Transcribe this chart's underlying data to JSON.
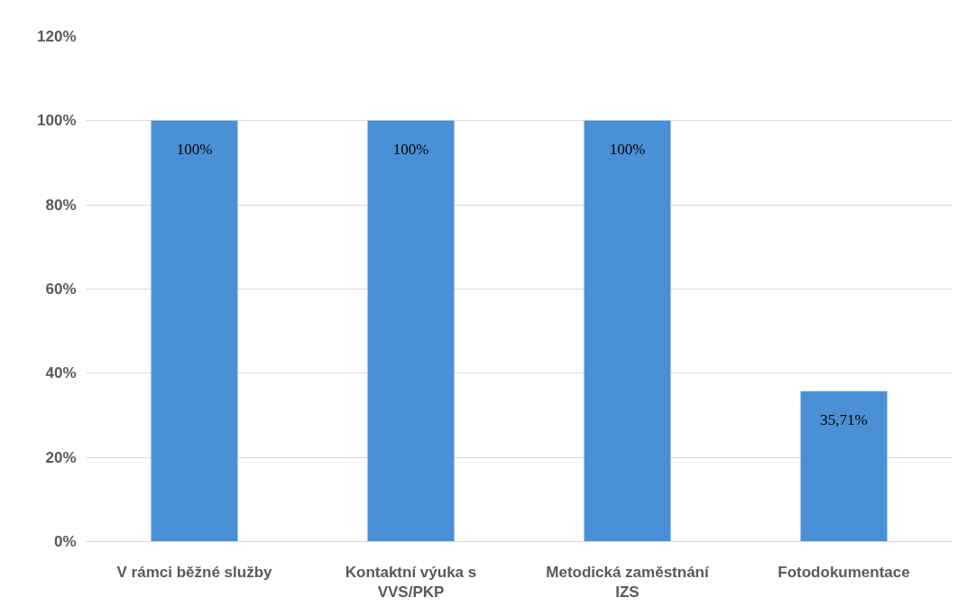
{
  "chart_data": {
    "type": "bar",
    "categories": [
      "V rámci běžné služby",
      "Kontaktní výuka s VVS/PKP",
      "Metodická zaměstnání IZS",
      "Fotodokumentace"
    ],
    "values": [
      100,
      100,
      100,
      35.71
    ],
    "color": "#4a90d6",
    "value_labels": [
      "100%",
      "100%",
      "100%",
      "35,71%"
    ],
    "ylim": [
      0,
      120
    ],
    "yticks": [
      {
        "value": 0,
        "label": "0%"
      },
      {
        "value": 20,
        "label": "20%"
      },
      {
        "value": 40,
        "label": "40%"
      },
      {
        "value": 60,
        "label": "60%"
      },
      {
        "value": 80,
        "label": "80%"
      },
      {
        "value": 100,
        "label": "100%"
      },
      {
        "value": 120,
        "label": "120%"
      }
    ],
    "grid": "y"
  }
}
